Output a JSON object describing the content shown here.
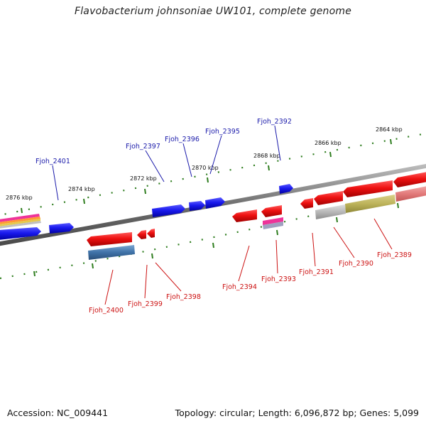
{
  "title": "Flavobacterium johnsoniae UW101, complete genome",
  "footer": {
    "accession": "Accession: NC_009441",
    "summary": "Topology: circular; Length: 6,096,872 bp; Genes: 5,099"
  },
  "colors": {
    "forward_gene": "#1a1aee",
    "reverse_gene": "#ee1111",
    "backbone": "#7a7a7a",
    "tick": "#2e7d1e",
    "forward_label": "#1a1aaa",
    "reverse_label": "#cc1111"
  },
  "kbp_ticks": [
    {
      "label": "2876 kbp"
    },
    {
      "label": "2874 kbp"
    },
    {
      "label": "2872 kbp"
    },
    {
      "label": "2870 kbp"
    },
    {
      "label": "2868 kbp"
    },
    {
      "label": "2866 kbp"
    },
    {
      "label": "2864 kbp"
    }
  ],
  "forward_genes": [
    {
      "label": "Fjoh_2401"
    },
    {
      "label": "Fjoh_2397"
    },
    {
      "label": "Fjoh_2396"
    },
    {
      "label": "Fjoh_2395"
    },
    {
      "label": "Fjoh_2392"
    }
  ],
  "reverse_genes": [
    {
      "label": "Fjoh_2400"
    },
    {
      "label": "Fjoh_2399"
    },
    {
      "label": "Fjoh_2398"
    },
    {
      "label": "Fjoh_2394"
    },
    {
      "label": "Fjoh_2393"
    },
    {
      "label": "Fjoh_2391"
    },
    {
      "label": "Fjoh_2390"
    },
    {
      "label": "Fjoh_2389"
    }
  ]
}
